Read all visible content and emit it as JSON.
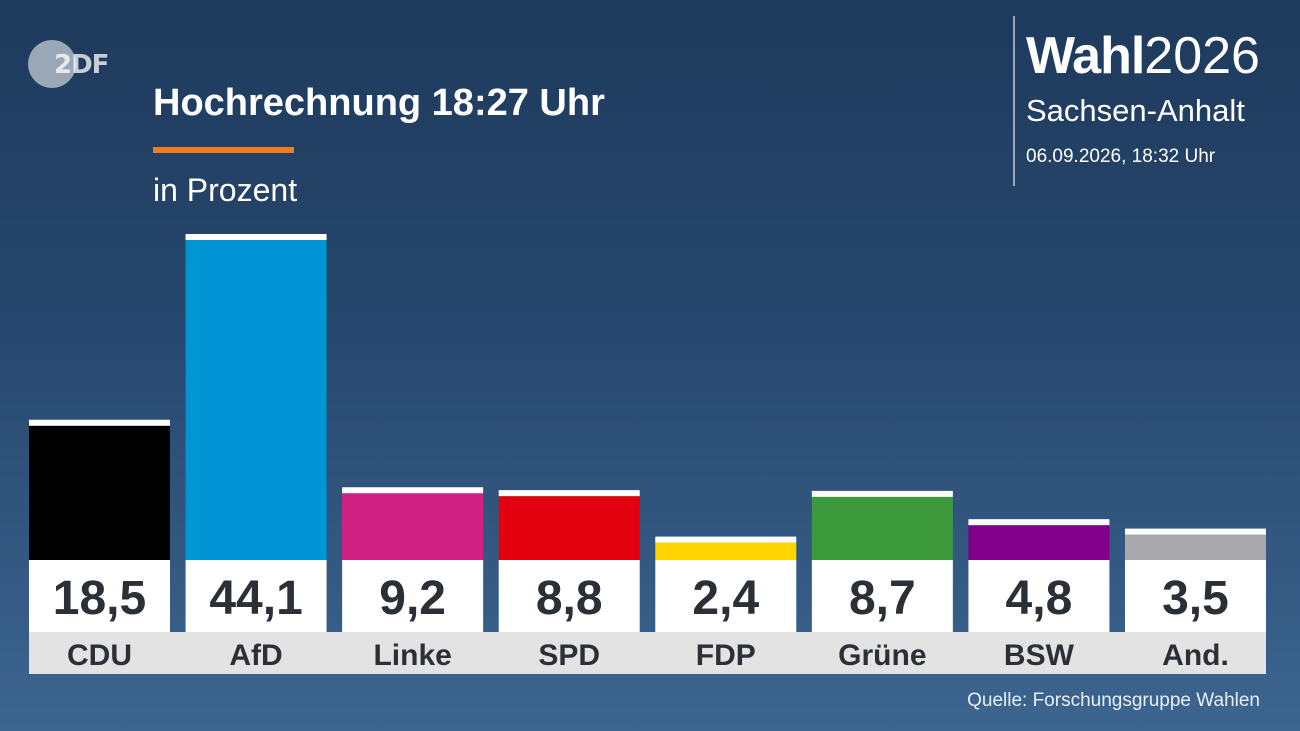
{
  "header": {
    "title": "Hochrechnung 18:27 Uhr",
    "subtitle": "in Prozent",
    "accent_color": "#f07d1e"
  },
  "logo": {
    "text": "2DF"
  },
  "brand": {
    "name_bold": "Wahl",
    "name_light": "2026",
    "region": "Sachsen-Anhalt",
    "timestamp": "06.09.2026, 18:32 Uhr"
  },
  "footer": {
    "source": "Quelle: Forschungsgruppe Wahlen"
  },
  "chart_data": {
    "type": "bar",
    "title": "Hochrechnung 18:27 Uhr",
    "subtitle": "in Prozent",
    "categories": [
      "CDU",
      "AfD",
      "Linke",
      "SPD",
      "FDP",
      "Grüne",
      "BSW",
      "And."
    ],
    "values": [
      18.5,
      44.1,
      9.2,
      8.8,
      2.4,
      8.7,
      4.8,
      3.5
    ],
    "value_labels": [
      "18,5",
      "44,1",
      "9,2",
      "8,8",
      "2,4",
      "8,7",
      "4,8",
      "3,5"
    ],
    "colors": [
      "#000000",
      "#0095d4",
      "#d12283",
      "#e3000f",
      "#ffd500",
      "#3c9a3c",
      "#80008a",
      "#a9a9ad"
    ],
    "ylim": [
      0,
      44.1
    ],
    "grid": false,
    "legend": "none"
  }
}
